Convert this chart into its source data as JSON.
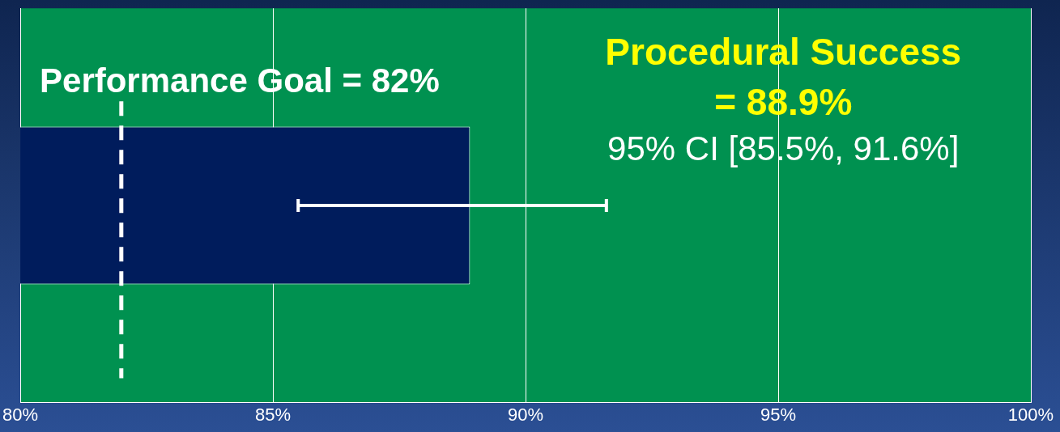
{
  "chart_data": {
    "type": "bar",
    "orientation": "horizontal",
    "categories": [
      null
    ],
    "values": [
      88.9
    ],
    "color": "#001c5c",
    "errors": [
      [
        85.5,
        91.6
      ]
    ],
    "xlim": [
      80,
      100
    ],
    "xticks": [
      {
        "value": 80,
        "label": "80%"
      },
      {
        "value": 85,
        "label": "85%"
      },
      {
        "value": 90,
        "label": "90%"
      },
      {
        "value": 95,
        "label": "95%"
      },
      {
        "value": 100,
        "label": "100%"
      }
    ],
    "grid": "x",
    "ref_lines": [
      {
        "axis": "x",
        "value": 82,
        "label": "Performance Goal = 82%",
        "color": "#ffffff",
        "line_style": "dashed"
      }
    ],
    "annotations": [
      "Procedural Success = 88.9%",
      "95% CI [85.5%, 91.6%]"
    ]
  }
}
